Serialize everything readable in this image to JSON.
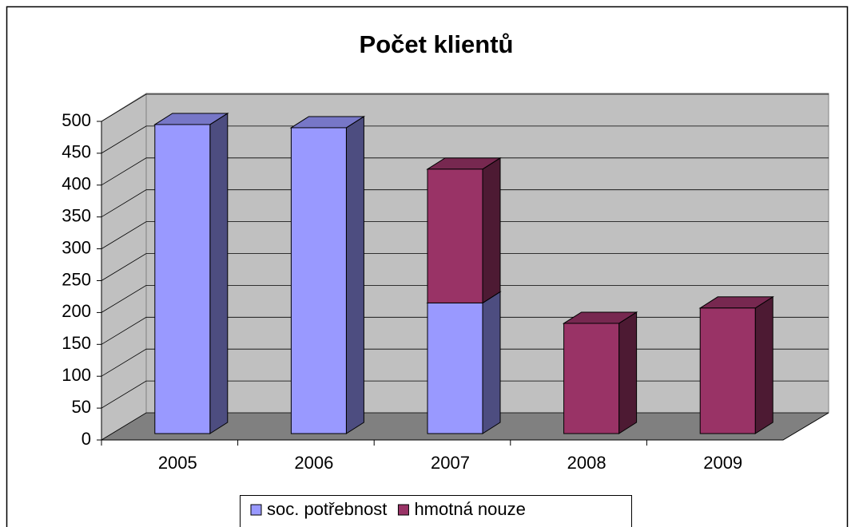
{
  "chart_data": {
    "type": "bar3d_stacked",
    "title": "Počet klientů",
    "categories": [
      "2005",
      "2006",
      "2007",
      "2008",
      "2009"
    ],
    "series": [
      {
        "name": "soc. potřebnost",
        "color": "#9999ff",
        "values": [
          485,
          480,
          205,
          0,
          0
        ]
      },
      {
        "name": "hmotná nouze",
        "color": "#993366",
        "values": [
          0,
          0,
          210,
          173,
          197
        ]
      }
    ],
    "ylim": [
      0,
      500
    ],
    "yticks": [
      0,
      50,
      100,
      150,
      200,
      250,
      300,
      350,
      400,
      450,
      500
    ],
    "grid": true
  }
}
